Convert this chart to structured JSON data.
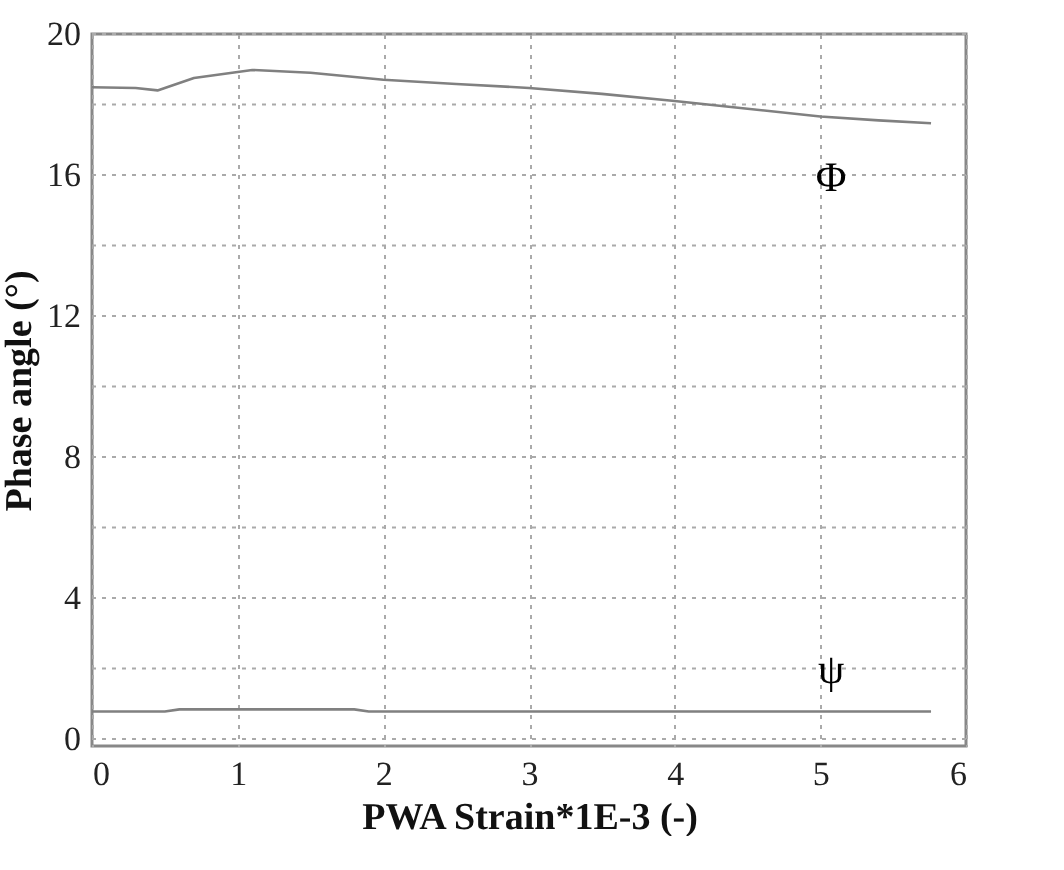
{
  "chart_data": {
    "type": "line",
    "xlabel": "PWA Strain*1E-3 (-)",
    "ylabel": "Phase angle (°)",
    "xlim": [
      0,
      6
    ],
    "xticks": [
      0,
      1,
      2,
      3,
      4,
      5,
      6
    ],
    "ylim": [
      -0.2,
      20
    ],
    "yticks": [
      0,
      {
        "value": 2,
        "label": null
      },
      4,
      {
        "value": 6,
        "label": null
      },
      8,
      {
        "value": 10,
        "label": null
      },
      12,
      {
        "value": 14,
        "label": null
      },
      16,
      {
        "value": 18,
        "label": null
      },
      20
    ],
    "grid": true,
    "legend": false,
    "line_style": "solid",
    "marker": "none",
    "series": [
      {
        "name": "Φ",
        "color": "#808080",
        "x": [
          0,
          0.3,
          0.45,
          0.7,
          1.1,
          1.5,
          2,
          2.5,
          3,
          3.5,
          4,
          4.5,
          5,
          5.4,
          5.76
        ],
        "values": [
          18.49,
          18.47,
          18.4,
          18.75,
          18.98,
          18.9,
          18.7,
          18.58,
          18.47,
          18.3,
          18.1,
          17.88,
          17.66,
          17.55,
          17.47
        ]
      },
      {
        "name": "ψ",
        "color": "#808080",
        "x": [
          0,
          0.5,
          0.6,
          1,
          1.8,
          1.9,
          3,
          4,
          5,
          5.76
        ],
        "values": [
          0.78,
          0.78,
          0.84,
          0.84,
          0.84,
          0.78,
          0.78,
          0.78,
          0.78,
          0.78
        ]
      }
    ]
  }
}
